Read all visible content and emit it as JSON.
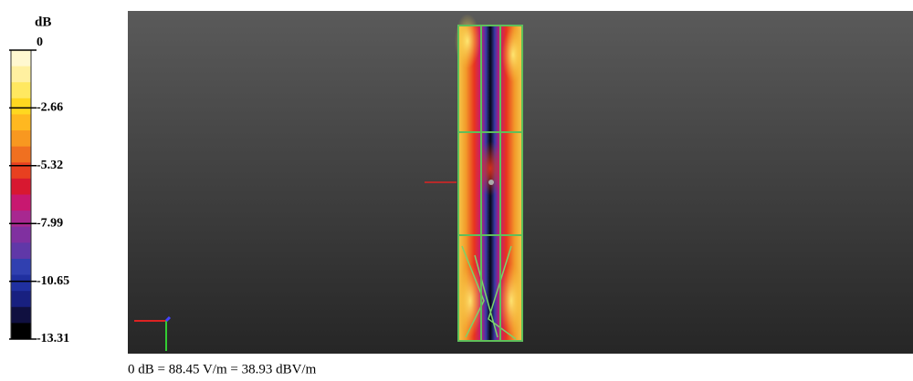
{
  "legend": {
    "title": "dB",
    "ticks": [
      0,
      -2.66,
      -5.32,
      -7.99,
      -10.65,
      -13.31
    ]
  },
  "footer": "0 dB = 88.45 V/m = 38.93 dBV/m"
}
